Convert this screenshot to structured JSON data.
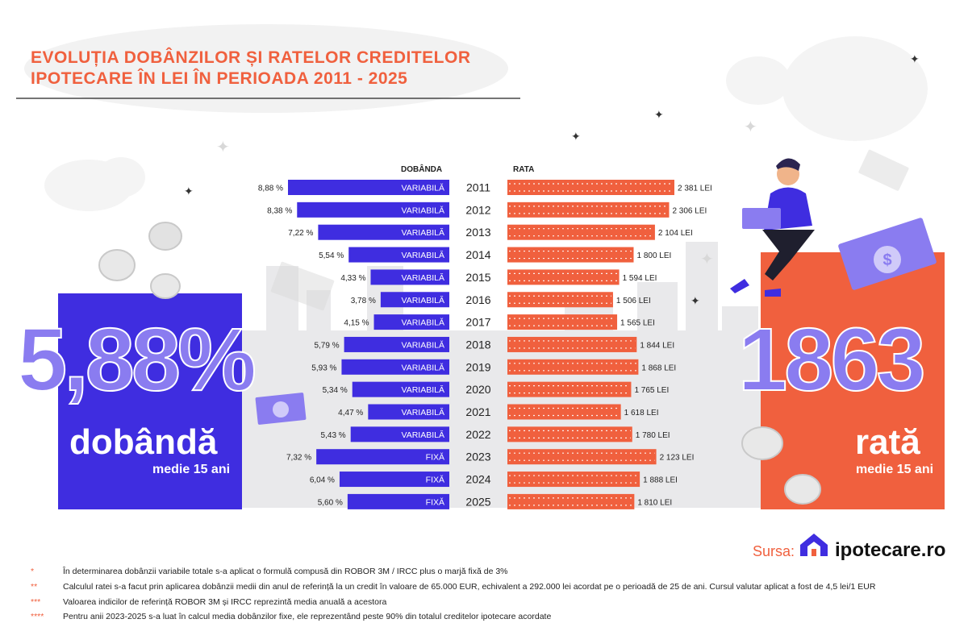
{
  "title": {
    "line1": "EVOLUȚIA DOBÂNZILOR ȘI RATELOR CREDITELOR",
    "line2": "IPOTECARE ÎN LEI ÎN PERIOADA 2011 - 2025"
  },
  "left_stat": {
    "value": "5,88%",
    "label": "dobândă",
    "sub": "medie 15 ani"
  },
  "right_stat": {
    "value": "1863",
    "label": "rată",
    "sub": "medie 15 ani"
  },
  "colors": {
    "interest_bar": "#3f2de0",
    "payment_bar": "#f0603e",
    "big_number": "#8a7cf0",
    "title": "#f0603e"
  },
  "chart_data": {
    "type": "bar",
    "headers": {
      "interest": "DOBÂNDA",
      "payment": "RATA"
    },
    "categories": [
      "2011",
      "2012",
      "2013",
      "2014",
      "2015",
      "2016",
      "2017",
      "2018",
      "2019",
      "2020",
      "2021",
      "2022",
      "2023",
      "2024",
      "2025"
    ],
    "series": [
      {
        "name": "DOBÂNDA",
        "values": [
          8.88,
          8.38,
          7.22,
          5.54,
          4.33,
          3.78,
          4.15,
          5.79,
          5.93,
          5.34,
          4.47,
          5.43,
          7.32,
          6.04,
          5.6
        ],
        "value_labels": [
          "8,88 %",
          "8,38 %",
          "7,22 %",
          "5,54 %",
          "4,33 %",
          "3,78 %",
          "4,15 %",
          "5,79 %",
          "5,93 %",
          "5,34 %",
          "4,47 %",
          "5,43 %",
          "7,32 %",
          "6,04 %",
          "5,60 %"
        ],
        "type_labels": [
          "VARIABILĂ",
          "VARIABILĂ",
          "VARIABILĂ",
          "VARIABILĂ",
          "VARIABILĂ",
          "VARIABILĂ",
          "VARIABILĂ",
          "VARIABILĂ",
          "VARIABILĂ",
          "VARIABILĂ",
          "VARIABILĂ",
          "VARIABILĂ",
          "FIXĂ",
          "FIXĂ",
          "FIXĂ"
        ]
      },
      {
        "name": "RATA",
        "values": [
          2381,
          2306,
          2104,
          1800,
          1594,
          1506,
          1565,
          1844,
          1868,
          1765,
          1618,
          1780,
          2123,
          1888,
          1810
        ],
        "value_labels": [
          "2 381 LEI",
          "2 306 LEI",
          "2 104 LEI",
          "1 800 LEI",
          "1 594 LEI",
          "1 506 LEI",
          "1 565 LEI",
          "1 844 LEI",
          "1 868 LEI",
          "1 765 LEI",
          "1 618 LEI",
          "1 780 LEI",
          "2 123 LEI",
          "1 888 LEI",
          "1 810 LEI"
        ]
      }
    ]
  },
  "source": {
    "label": "Sursa:",
    "site": "ipotecare.ro"
  },
  "footnotes": [
    {
      "mark": "*",
      "text": "În determinarea dobânzii variabile totale s-a aplicat o formulă compusă din ROBOR 3M / IRCC plus o marjă fixă de 3%"
    },
    {
      "mark": "**",
      "text": "Calculul ratei s-a facut prin aplicarea dobânzii medii din anul de referință la un credit în valoare de 65.000 EUR, echivalent a 292.000 lei acordat pe o perioadă de 25 de ani. Cursul valutar aplicat a fost de 4,5 lei/1 EUR"
    },
    {
      "mark": "***",
      "text": "Valoarea indicilor de referință ROBOR 3M și IRCC reprezintă media anuală a acestora"
    },
    {
      "mark": "****",
      "text": "Pentru anii 2023-2025 s-a luat în calcul media dobânzilor fixe, ele reprezentând peste 90% din totalul creditelor ipotecare acordate"
    }
  ]
}
